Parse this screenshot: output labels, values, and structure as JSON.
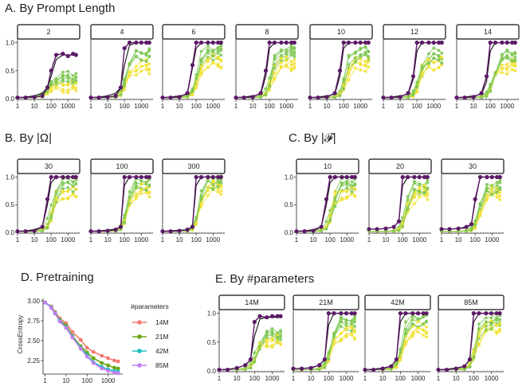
{
  "colors": {
    "mlp": "#5b1a66",
    "green": "#7fc855",
    "yellow": "#f2e23a",
    "black": "#111111"
  },
  "strip_labels": {
    "A": [
      "2",
      "4",
      "6",
      "8",
      "10",
      "12",
      "14"
    ],
    "B": [
      "30",
      "100",
      "300"
    ],
    "C": [
      "10",
      "20",
      "30"
    ],
    "E": [
      "14M",
      "21M",
      "42M",
      "85M"
    ]
  },
  "chart_data": [
    {
      "id": "A",
      "type": "line",
      "title": "A. By Prompt Length",
      "facet_by": "prompt length",
      "x_scale": "log",
      "xlim": [
        1,
        5000
      ],
      "x_ticks": [
        1,
        10,
        100,
        1000
      ],
      "x_tick_labels": [
        "1",
        "10",
        "100",
        "1000"
      ],
      "ylim": [
        0,
        1.05
      ],
      "y_ticks": [
        0,
        0.5,
        1
      ],
      "y_tick_labels": [
        "0.0",
        "0.5",
        "1.0"
      ],
      "x": [
        1,
        3,
        10,
        30,
        60,
        100,
        200,
        500,
        1000,
        2000,
        3000
      ],
      "facets": [
        {
          "mlp": [
            0.02,
            0.02,
            0.03,
            0.05,
            0.2,
            0.5,
            0.78,
            0.8,
            0.76,
            0.8,
            0.78
          ],
          "mean": [
            0.02,
            0.03,
            0.05,
            0.1,
            0.2,
            0.4,
            0.7,
            0.78,
            0.78,
            0.78,
            0.78
          ],
          "green_final": 0.35,
          "yellow_final": 0.2,
          "mid": 60
        },
        {
          "mlp": [
            0.02,
            0.02,
            0.03,
            0.05,
            0.2,
            0.9,
            1.0,
            1.0,
            1.0,
            1.0,
            1.0
          ],
          "mean": [
            0.02,
            0.03,
            0.05,
            0.1,
            0.2,
            0.6,
            0.95,
            1.0,
            1.0,
            1.0,
            1.0
          ],
          "green_final": 0.75,
          "yellow_final": 0.55,
          "mid": 110
        },
        {
          "mlp": [
            0.02,
            0.02,
            0.03,
            0.1,
            0.6,
            1.0,
            1.0,
            1.0,
            1.0,
            1.0,
            1.0
          ],
          "mean": [
            0.02,
            0.03,
            0.05,
            0.08,
            0.55,
            0.9,
            1.0,
            1.0,
            1.0,
            1.0,
            1.0
          ],
          "green_final": 0.8,
          "yellow_final": 0.65,
          "mid": 110
        },
        {
          "mlp": [
            0.02,
            0.02,
            0.03,
            0.1,
            0.5,
            1.0,
            1.0,
            1.0,
            1.0,
            1.0,
            1.0
          ],
          "mean": [
            0.02,
            0.03,
            0.05,
            0.08,
            0.4,
            0.9,
            1.0,
            1.0,
            1.0,
            1.0,
            1.0
          ],
          "green_final": 0.8,
          "yellow_final": 0.6,
          "mid": 120
        },
        {
          "mlp": [
            0.02,
            0.02,
            0.03,
            0.1,
            0.5,
            1.0,
            1.0,
            1.0,
            1.0,
            1.0,
            1.0
          ],
          "mean": [
            0.02,
            0.03,
            0.05,
            0.08,
            0.4,
            0.9,
            1.0,
            1.0,
            1.0,
            1.0,
            1.0
          ],
          "green_final": 0.8,
          "yellow_final": 0.6,
          "mid": 120
        },
        {
          "mlp": [
            0.02,
            0.02,
            0.03,
            0.1,
            0.4,
            1.0,
            1.0,
            1.0,
            1.0,
            1.0,
            1.0
          ],
          "mean": [
            0.02,
            0.03,
            0.05,
            0.08,
            0.35,
            0.85,
            1.0,
            1.0,
            1.0,
            1.0,
            1.0
          ],
          "green_final": 0.75,
          "yellow_final": 0.6,
          "mid": 130
        },
        {
          "mlp": [
            0.02,
            0.02,
            0.03,
            0.1,
            0.4,
            1.0,
            1.0,
            1.0,
            1.0,
            1.0,
            1.0
          ],
          "mean": [
            0.02,
            0.03,
            0.05,
            0.08,
            0.3,
            0.85,
            1.0,
            1.0,
            1.0,
            1.0,
            1.0
          ],
          "green_final": 0.75,
          "yellow_final": 0.55,
          "mid": 140
        }
      ]
    },
    {
      "id": "B",
      "type": "line",
      "title": "B. By |Ω|",
      "facet_by": "|Ω|",
      "x_scale": "log",
      "xlim": [
        1,
        5000
      ],
      "x_ticks": [
        1,
        10,
        100,
        1000
      ],
      "x_tick_labels": [
        "1",
        "10",
        "100",
        "1000"
      ],
      "ylim": [
        0,
        1.05
      ],
      "y_ticks": [
        0,
        0.5,
        1
      ],
      "y_tick_labels": [
        "0.0",
        "0.5",
        "1.0"
      ],
      "x": [
        1,
        3,
        10,
        30,
        60,
        100,
        200,
        500,
        1000,
        2000,
        3000
      ],
      "facets": [
        {
          "mlp": [
            0.02,
            0.02,
            0.03,
            0.1,
            0.6,
            1.0,
            1.0,
            1.0,
            1.0,
            1.0,
            1.0
          ],
          "mean": [
            0.02,
            0.03,
            0.05,
            0.1,
            0.5,
            0.9,
            1.0,
            1.0,
            1.0,
            1.0,
            1.0
          ],
          "green_final": 0.85,
          "yellow_final": 0.7,
          "mid": 110
        },
        {
          "mlp": [
            0.02,
            0.02,
            0.03,
            0.05,
            0.1,
            1.0,
            1.0,
            1.0,
            1.0,
            1.0,
            1.0
          ],
          "mean": [
            0.02,
            0.03,
            0.04,
            0.06,
            0.1,
            0.85,
            1.0,
            1.0,
            1.0,
            1.0,
            1.0
          ],
          "green_final": 0.85,
          "yellow_final": 0.75,
          "mid": 130
        },
        {
          "mlp": [
            0.02,
            0.02,
            0.03,
            0.05,
            0.1,
            1.0,
            1.0,
            1.0,
            1.0,
            1.0,
            1.0
          ],
          "mean": [
            0.02,
            0.03,
            0.04,
            0.05,
            0.1,
            0.85,
            1.0,
            1.0,
            1.0,
            1.0,
            1.0
          ],
          "green_final": 0.9,
          "yellow_final": 0.8,
          "mid": 140
        }
      ]
    },
    {
      "id": "C",
      "type": "line",
      "title": "C. By |𝓕|",
      "facet_by": "|𝓕|",
      "x_scale": "log",
      "xlim": [
        1,
        5000
      ],
      "x_ticks": [
        1,
        10,
        100,
        1000
      ],
      "x_tick_labels": [
        "1",
        "10",
        "100",
        "1000"
      ],
      "ylim": [
        0,
        1.05
      ],
      "y_ticks": [
        0,
        0.5,
        1
      ],
      "y_tick_labels": [
        "0.0",
        "0.5",
        "1.0"
      ],
      "x": [
        1,
        3,
        10,
        30,
        60,
        100,
        200,
        500,
        1000,
        2000,
        3000
      ],
      "facets": [
        {
          "mlp": [
            0.02,
            0.02,
            0.03,
            0.1,
            0.6,
            1.0,
            1.0,
            1.0,
            1.0,
            1.0,
            1.0
          ],
          "mean": [
            0.02,
            0.03,
            0.05,
            0.1,
            0.5,
            0.9,
            1.0,
            1.0,
            1.0,
            1.0,
            1.0
          ],
          "green_final": 0.85,
          "yellow_final": 0.7,
          "mid": 120
        },
        {
          "mlp": [
            0.06,
            0.06,
            0.07,
            0.1,
            0.2,
            1.0,
            1.0,
            1.0,
            1.0,
            1.0,
            1.0
          ],
          "mean": [
            0.06,
            0.06,
            0.07,
            0.1,
            0.2,
            0.85,
            1.0,
            1.0,
            1.0,
            1.0,
            1.0
          ],
          "green_final": 0.8,
          "yellow_final": 0.7,
          "mid": 150
        },
        {
          "mlp": [
            0.06,
            0.06,
            0.07,
            0.1,
            0.15,
            0.6,
            1.0,
            1.0,
            1.0,
            1.0,
            1.0
          ],
          "mean": [
            0.06,
            0.06,
            0.07,
            0.08,
            0.15,
            0.55,
            1.0,
            1.0,
            1.0,
            1.0,
            1.0
          ],
          "green_final": 0.8,
          "yellow_final": 0.7,
          "mid": 170
        }
      ]
    },
    {
      "id": "D",
      "type": "line",
      "title": "D. Pretraining",
      "ylabel": "CrossEntropy",
      "x_scale": "log",
      "xlim": [
        0.8,
        5000
      ],
      "x_ticks": [
        1,
        10,
        100,
        1000
      ],
      "x_tick_labels": [
        "1",
        "10",
        "100",
        "1000"
      ],
      "ylim": [
        2.08,
        3.03
      ],
      "y_ticks": [
        2.25,
        2.5,
        2.75,
        3.0
      ],
      "y_tick_labels": [
        "2.25",
        "2.50",
        "2.75",
        "3.00"
      ],
      "legend_title": "#parameters",
      "legend_position": "right",
      "x": [
        1,
        2,
        3,
        5,
        10,
        20,
        50,
        100,
        200,
        500,
        1000,
        2000,
        3000
      ],
      "series": [
        {
          "name": "14M",
          "color": "#f07b73",
          "values": [
            2.98,
            2.93,
            2.86,
            2.78,
            2.72,
            2.61,
            2.51,
            2.41,
            2.36,
            2.31,
            2.28,
            2.25,
            2.24
          ]
        },
        {
          "name": "21M",
          "color": "#6aa50e",
          "values": [
            2.98,
            2.92,
            2.85,
            2.76,
            2.69,
            2.56,
            2.43,
            2.35,
            2.28,
            2.22,
            2.19,
            2.16,
            2.15
          ]
        },
        {
          "name": "42M",
          "color": "#1fbdbe",
          "values": [
            2.98,
            2.92,
            2.84,
            2.75,
            2.67,
            2.55,
            2.41,
            2.32,
            2.23,
            2.17,
            2.14,
            2.12,
            2.11
          ]
        },
        {
          "name": "85M",
          "color": "#c27ff2",
          "values": [
            2.98,
            2.91,
            2.84,
            2.74,
            2.66,
            2.54,
            2.4,
            2.3,
            2.22,
            2.15,
            2.12,
            2.1,
            2.09
          ]
        }
      ]
    },
    {
      "id": "E",
      "type": "line",
      "title": "E. By #parameters",
      "facet_by": "#parameters",
      "x_scale": "log",
      "xlim": [
        1,
        5000
      ],
      "x_ticks": [
        1,
        10,
        100,
        1000
      ],
      "x_tick_labels": [
        "1",
        "10",
        "100",
        "1000"
      ],
      "ylim": [
        0,
        1.05
      ],
      "y_ticks": [
        0,
        0.5,
        1
      ],
      "y_tick_labels": [
        "0.0",
        "0.5",
        "1.0"
      ],
      "x": [
        1,
        3,
        10,
        30,
        60,
        100,
        200,
        500,
        1000,
        2000,
        3000
      ],
      "facets": [
        {
          "mlp": [
            0.02,
            0.02,
            0.05,
            0.1,
            0.2,
            0.85,
            0.95,
            0.93,
            0.95,
            0.95,
            0.95
          ],
          "mean": [
            0.02,
            0.03,
            0.05,
            0.1,
            0.2,
            0.6,
            0.9,
            0.93,
            0.93,
            0.93,
            0.93
          ],
          "green_final": 0.6,
          "yellow_final": 0.5,
          "mid": 120
        },
        {
          "mlp": [
            0.04,
            0.04,
            0.05,
            0.1,
            0.2,
            1.0,
            1.0,
            1.0,
            1.0,
            1.0,
            1.0
          ],
          "mean": [
            0.04,
            0.04,
            0.06,
            0.1,
            0.2,
            0.8,
            1.0,
            1.0,
            1.0,
            1.0,
            1.0
          ],
          "green_final": 0.8,
          "yellow_final": 0.65,
          "mid": 120
        },
        {
          "mlp": [
            0.02,
            0.02,
            0.04,
            0.08,
            0.2,
            1.0,
            1.0,
            1.0,
            1.0,
            1.0,
            1.0
          ],
          "mean": [
            0.02,
            0.03,
            0.05,
            0.08,
            0.2,
            0.85,
            1.0,
            1.0,
            1.0,
            1.0,
            1.0
          ],
          "green_final": 0.85,
          "yellow_final": 0.7,
          "mid": 120
        },
        {
          "mlp": [
            0.02,
            0.02,
            0.04,
            0.08,
            0.2,
            1.0,
            1.0,
            1.0,
            1.0,
            1.0,
            1.0
          ],
          "mean": [
            0.02,
            0.03,
            0.05,
            0.08,
            0.2,
            0.85,
            1.0,
            1.0,
            1.0,
            1.0,
            1.0
          ],
          "green_final": 0.85,
          "yellow_final": 0.75,
          "mid": 120
        }
      ]
    }
  ]
}
